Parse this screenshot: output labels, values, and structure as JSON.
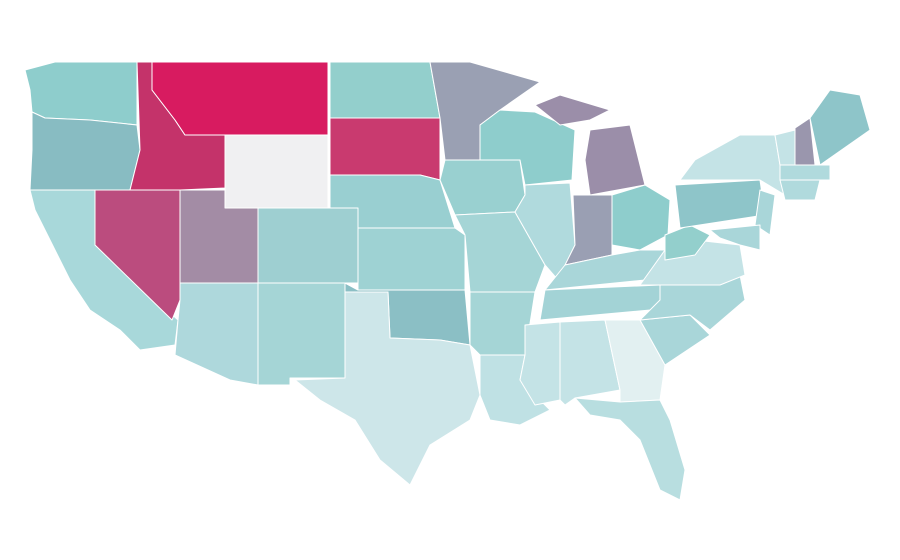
{
  "regions": [
    {
      "color": "#8ecdcc"
    },
    {
      "color": "#88bcc2"
    },
    {
      "color": "#a8d8da"
    },
    {
      "color": "#bb4c7e"
    },
    {
      "color": "#c4336a"
    },
    {
      "color": "#d81b60"
    },
    {
      "color": "#f0f0f2"
    },
    {
      "color": "#a38ca5"
    },
    {
      "color": "#aed8dc"
    },
    {
      "color": "#9ecfd1"
    },
    {
      "color": "#a5d5d6"
    },
    {
      "color": "#93cfcc"
    },
    {
      "color": "#c93a6f"
    },
    {
      "color": "#99cfd1"
    },
    {
      "color": "#9ed2d3"
    },
    {
      "color": "#8bbfc5"
    },
    {
      "color": "#cde6e9"
    },
    {
      "color": "#9aa0b3"
    },
    {
      "color": "#99d0d0"
    },
    {
      "color": "#a5d5d6"
    },
    {
      "color": "#a5d5d6"
    },
    {
      "color": "#bfe1e4"
    },
    {
      "color": "#8ecdcc"
    },
    {
      "color": "#b0dadd"
    },
    {
      "color": "#9b8ea9"
    },
    {
      "color": "#9b8ea9"
    },
    {
      "color": "#9a9fb3"
    },
    {
      "color": "#8ecdcc"
    },
    {
      "color": "#a9d6d9"
    },
    {
      "color": "#a3d3d6"
    },
    {
      "color": "#c4e3e6"
    },
    {
      "color": "#c4e3e6"
    },
    {
      "color": "#e2f0f1"
    },
    {
      "color": "#b8dee0"
    },
    {
      "color": "#a9d6d9"
    },
    {
      "color": "#a9d6d9"
    },
    {
      "color": "#c4e3e6"
    },
    {
      "color": "#93cfcc"
    },
    {
      "color": "#8ec5c9"
    },
    {
      "color": "#c4e3e6"
    },
    {
      "color": "#a9d6d9"
    },
    {
      "color": "#a9d6d9"
    },
    {
      "color": "#c4e3e6"
    },
    {
      "color": "#9a96ad"
    },
    {
      "color": "#8ec5c9"
    },
    {
      "color": "#b0dadd"
    },
    {
      "color": "#b0dadd"
    }
  ]
}
